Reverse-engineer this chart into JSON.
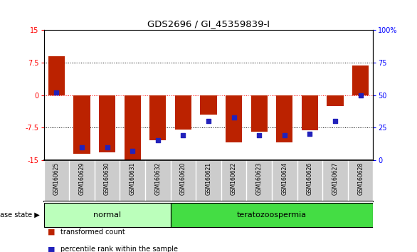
{
  "title": "GDS2696 / GI_45359839-I",
  "samples": [
    "GSM160625",
    "GSM160629",
    "GSM160630",
    "GSM160631",
    "GSM160632",
    "GSM160620",
    "GSM160621",
    "GSM160622",
    "GSM160623",
    "GSM160624",
    "GSM160626",
    "GSM160627",
    "GSM160628"
  ],
  "transformed_count": [
    9.0,
    -13.5,
    -13.2,
    -15.0,
    -10.5,
    -8.0,
    -4.5,
    -11.0,
    -8.5,
    -11.0,
    -8.2,
    -2.5,
    6.8
  ],
  "percentile_rank": [
    52,
    10,
    10,
    7,
    15,
    19,
    30,
    33,
    19,
    19,
    20,
    30,
    50
  ],
  "disease_state": [
    "normal",
    "normal",
    "normal",
    "normal",
    "normal",
    "teratozoospermia",
    "teratozoospermia",
    "teratozoospermia",
    "teratozoospermia",
    "teratozoospermia",
    "teratozoospermia",
    "teratozoospermia",
    "teratozoospermia"
  ],
  "normal_color": "#bbffbb",
  "terato_color": "#44dd44",
  "bar_color": "#bb2200",
  "dot_color": "#2222bb",
  "ylim_left": [
    -15,
    15
  ],
  "ylim_right": [
    0,
    100
  ],
  "yticks_left": [
    -15,
    -7.5,
    0,
    7.5,
    15
  ],
  "yticks_right": [
    0,
    25,
    50,
    75,
    100
  ],
  "ytick_labels_left": [
    "-15",
    "-7.5",
    "0",
    "7.5",
    "15"
  ],
  "ytick_labels_right": [
    "0",
    "25",
    "50",
    "75",
    "100%"
  ],
  "hline_positions": [
    -7.5,
    0,
    7.5
  ],
  "bg_color": "#ffffff",
  "tick_area_color": "#cccccc"
}
